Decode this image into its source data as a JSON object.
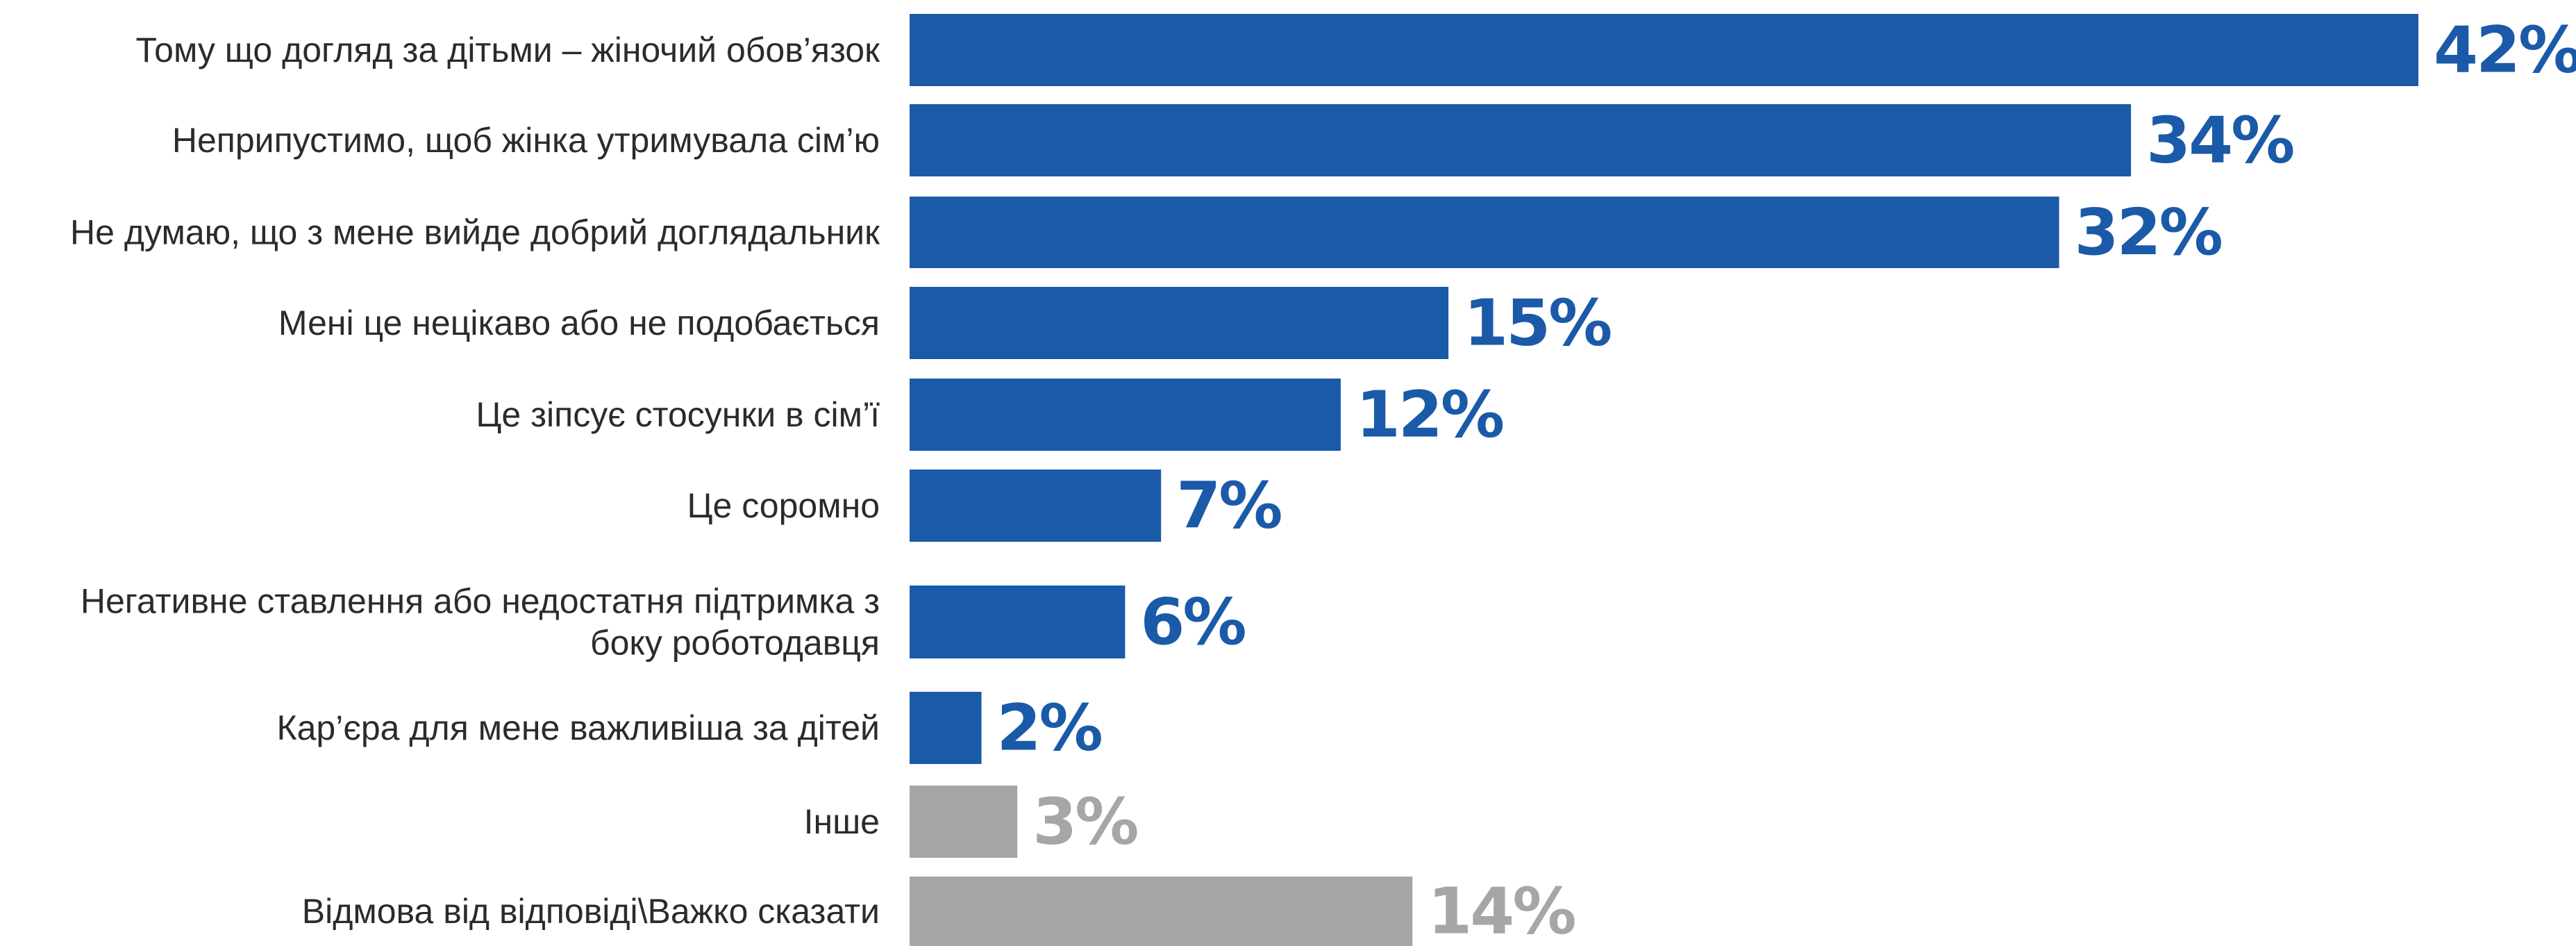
{
  "chart_data": {
    "type": "bar",
    "orientation": "horizontal",
    "categories": [
      "Тому що догляд за дітьми – жіночий обов’язок",
      "Неприпустимо, щоб жінка утримувала сім’ю",
      "Не думаю, що з мене вийде добрий доглядальник",
      "Мені це нецікаво або не подобається",
      "Це зіпсує стосунки в сім’ї",
      "Це соромно",
      "Негативне ставлення або недостатня підтримка з боку роботодавця",
      "Кар’єра для мене важливіша за дітей",
      "Інше",
      "Відмова від відповіді\\Важко сказати"
    ],
    "label_lines": [
      [
        "Тому що догляд за дітьми – жіночий обов’язок"
      ],
      [
        "Неприпустимо, щоб жінка утримувала сім’ю"
      ],
      [
        "Не думаю, що з мене вийде добрий доглядальник"
      ],
      [
        "Мені це нецікаво або не подобається"
      ],
      [
        "Це зіпсує стосунки в сім’ї"
      ],
      [
        "Це соромно"
      ],
      [
        "Негативне ставлення або недостатня підтримка з",
        "боку роботодавця"
      ],
      [
        "Кар’єра для мене важливіша за дітей"
      ],
      [
        "Інше"
      ],
      [
        "Відмова від відповіді\\Важко сказати"
      ]
    ],
    "values": [
      42,
      34,
      32,
      15,
      12,
      7,
      6,
      2,
      3,
      14
    ],
    "value_labels": [
      "42%",
      "34%",
      "32%",
      "15%",
      "12%",
      "7%",
      "6%",
      "2%",
      "3%",
      "14%"
    ],
    "bar_colors": [
      "#1a5aa8",
      "#1a5aa8",
      "#1a5aa8",
      "#1a5aa8",
      "#1a5aa8",
      "#1a5aa8",
      "#1a5aa8",
      "#1a5aa8",
      "#a6a6a9",
      "#a6a6a9"
    ],
    "value_label_colors": [
      "#1a5aa8",
      "#1a5aa8",
      "#1a5aa8",
      "#1a5aa8",
      "#1a5aa8",
      "#1a5aa8",
      "#1a5aa8",
      "#1a5aa8",
      "#a6a6a9",
      "#a6a6a9"
    ],
    "xlim": [
      0,
      42
    ],
    "grid": false,
    "title": "",
    "xlabel": "",
    "ylabel": ""
  }
}
